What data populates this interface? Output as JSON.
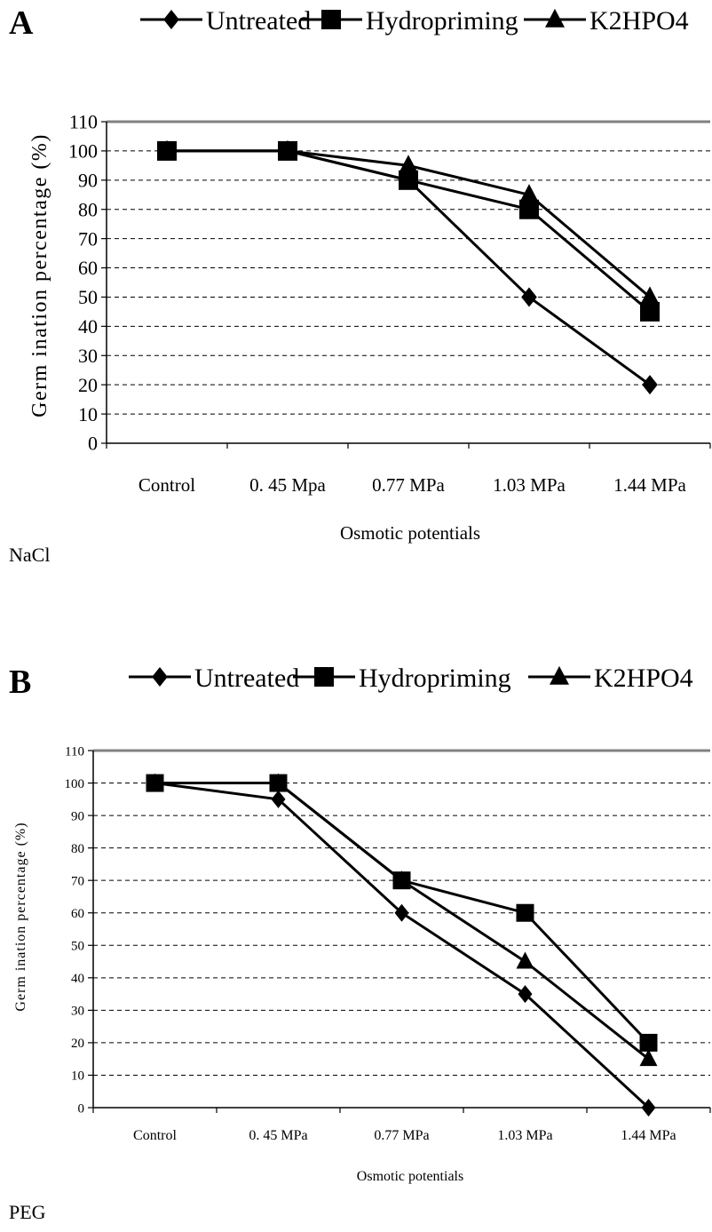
{
  "legend": {
    "items": [
      {
        "label": "Untreated",
        "marker": "diamond-icon"
      },
      {
        "label": "Hydropriming",
        "marker": "square-icon"
      },
      {
        "label": "K2HPO4",
        "marker": "triangle-icon"
      }
    ]
  },
  "chart_data": [
    {
      "type": "line",
      "panel_label": "A",
      "note": "NaCl",
      "xlabel": "Osmotic potentials",
      "ylabel": "Germ ination percentage (%)",
      "categories": [
        "Control",
        "0. 45 Mpa",
        "0.77 MPa",
        "1.03 MPa",
        "1.44 MPa"
      ],
      "ylim": [
        0,
        110
      ],
      "yticks": [
        0,
        10,
        20,
        30,
        40,
        50,
        60,
        70,
        80,
        90,
        100,
        110
      ],
      "grid": "horizontal dashed",
      "legend_position": "top",
      "series": [
        {
          "name": "Untreated",
          "marker": "diamond",
          "values": [
            100,
            100,
            90,
            50,
            20
          ]
        },
        {
          "name": "Hydropriming",
          "marker": "square",
          "values": [
            100,
            100,
            90,
            80,
            45
          ]
        },
        {
          "name": "K2HPO4",
          "marker": "triangle",
          "values": [
            100,
            100,
            95,
            85,
            50
          ]
        }
      ]
    },
    {
      "type": "line",
      "panel_label": "B",
      "note": "PEG",
      "xlabel": "Osmotic potentials",
      "ylabel": "Germ ination percentage (%)",
      "categories": [
        "Control",
        "0. 45 MPa",
        "0.77 MPa",
        "1.03 MPa",
        "1.44 MPa"
      ],
      "ylim": [
        0,
        110
      ],
      "yticks": [
        0,
        10,
        20,
        30,
        40,
        50,
        60,
        70,
        80,
        90,
        100,
        110
      ],
      "grid": "horizontal dashed",
      "legend_position": "top",
      "series": [
        {
          "name": "Untreated",
          "marker": "diamond",
          "values": [
            100,
            95,
            60,
            35,
            0
          ]
        },
        {
          "name": "Hydropriming",
          "marker": "square",
          "values": [
            100,
            100,
            70,
            60,
            20
          ]
        },
        {
          "name": "K2HPO4",
          "marker": "triangle",
          "values": [
            100,
            100,
            70,
            45,
            15
          ]
        }
      ]
    }
  ]
}
